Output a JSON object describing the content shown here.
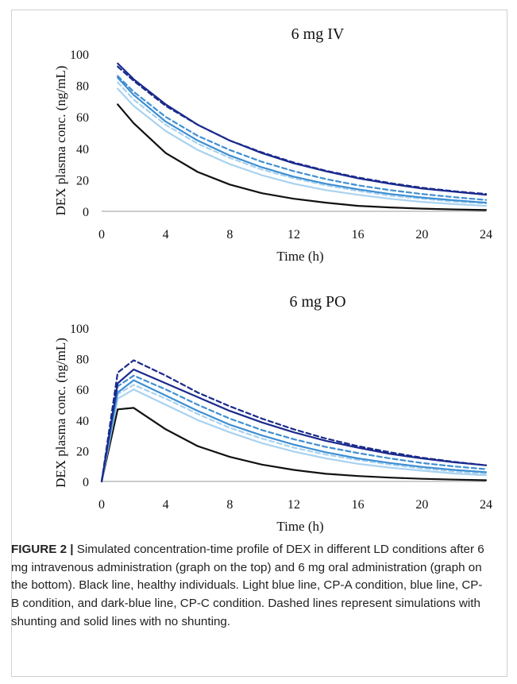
{
  "chart_data": [
    {
      "type": "line",
      "title": "6 mg IV",
      "xlabel": "Time (h)",
      "ylabel": "DEX plasma conc. (ng/mL)",
      "xlim": [
        0,
        24
      ],
      "ylim": [
        0,
        100
      ],
      "x_ticks": [
        "0",
        "4",
        "8",
        "12",
        "16",
        "20",
        "24"
      ],
      "y_ticks": [
        "0",
        "20",
        "40",
        "60",
        "80",
        "100"
      ],
      "grid": false,
      "legend": "none",
      "x": [
        1,
        2,
        4,
        6,
        8,
        10,
        12,
        14,
        16,
        18,
        20,
        22,
        24
      ],
      "series": [
        {
          "color": "#111111",
          "dash": false,
          "values": [
            68,
            56,
            37,
            25,
            17,
            11.5,
            8,
            5.5,
            3.5,
            2.5,
            1.7,
            1.2,
            0.8
          ]
        },
        {
          "color": "#a9d2f0",
          "dash": false,
          "values": [
            78,
            67,
            51,
            39,
            30,
            23,
            17.5,
            13.5,
            10.5,
            8,
            6,
            4.6,
            3.5
          ]
        },
        {
          "color": "#a9d2f0",
          "dash": true,
          "values": [
            82,
            71,
            55,
            43,
            34,
            26.5,
            21,
            16.5,
            13,
            10,
            8,
            6.2,
            5
          ]
        },
        {
          "color": "#3f8fd2",
          "dash": false,
          "values": [
            85,
            74,
            57,
            45,
            35.5,
            28,
            22,
            17.5,
            14,
            11,
            8.8,
            7,
            5.5
          ]
        },
        {
          "color": "#3f8fd2",
          "dash": true,
          "values": [
            86,
            76,
            60,
            48,
            39,
            31.5,
            25.5,
            20.5,
            16.5,
            13.5,
            11,
            9,
            7.2
          ]
        },
        {
          "color": "#1a2a8c",
          "dash": false,
          "values": [
            94,
            84,
            68,
            55,
            45,
            37,
            30.5,
            25.5,
            21,
            17.5,
            14.5,
            12.5,
            10.5
          ]
        },
        {
          "color": "#1a2a8c",
          "dash": true,
          "values": [
            92,
            83,
            67,
            55,
            45,
            37.5,
            31,
            25.8,
            21.5,
            18,
            15,
            12.8,
            11
          ]
        }
      ]
    },
    {
      "type": "line",
      "title": "6 mg PO",
      "xlabel": "Time (h)",
      "ylabel": "DEX plasma conc. (ng/mL)",
      "xlim": [
        0,
        24
      ],
      "ylim": [
        0,
        100
      ],
      "x_ticks": [
        "0",
        "4",
        "8",
        "12",
        "16",
        "20",
        "24"
      ],
      "y_ticks": [
        "0",
        "20",
        "40",
        "60",
        "80",
        "100"
      ],
      "grid": false,
      "legend": "none",
      "x": [
        0,
        1,
        2,
        4,
        6,
        8,
        10,
        12,
        14,
        16,
        18,
        20,
        22,
        24
      ],
      "series": [
        {
          "color": "#111111",
          "dash": false,
          "values": [
            0,
            47,
            48,
            34,
            23,
            16,
            11,
            7.5,
            5,
            3.5,
            2.5,
            1.7,
            1.2,
            0.8
          ]
        },
        {
          "color": "#a9d2f0",
          "dash": false,
          "values": [
            0,
            54,
            60,
            50,
            40,
            32,
            25,
            19.5,
            15,
            11.5,
            9,
            7,
            5.2,
            4
          ]
        },
        {
          "color": "#a9d2f0",
          "dash": true,
          "values": [
            0,
            57,
            63,
            54,
            44,
            35,
            28,
            22,
            17.5,
            14,
            11,
            8.5,
            6.5,
            5
          ]
        },
        {
          "color": "#3f8fd2",
          "dash": false,
          "values": [
            0,
            58,
            66,
            56,
            46,
            37,
            30,
            24,
            19,
            15,
            12,
            9.5,
            7.5,
            6
          ]
        },
        {
          "color": "#3f8fd2",
          "dash": true,
          "values": [
            0,
            62,
            69,
            60,
            50,
            41,
            33.5,
            27.5,
            22.5,
            18.5,
            15,
            12,
            9.8,
            8
          ]
        },
        {
          "color": "#1a2a8c",
          "dash": false,
          "values": [
            0,
            64,
            73,
            64,
            55,
            46,
            38.5,
            32,
            26.5,
            22,
            18,
            15,
            12.5,
            10.5
          ]
        },
        {
          "color": "#1a2a8c",
          "dash": true,
          "values": [
            0,
            71,
            79,
            69,
            58,
            49,
            41,
            34,
            28,
            23,
            19,
            15.5,
            12.8,
            10.5
          ]
        }
      ]
    }
  ],
  "caption": {
    "lead": "FIGURE 2 |",
    "text": " Simulated concentration-time profile of DEX in different LD conditions after 6 mg intravenous administration (graph on the top) and 6 mg oral administration (graph on the bottom). Black line, healthy individuals. Light blue line, CP-A condition, blue line, CP-B condition, and dark-blue line, CP-C condition. Dashed lines represent simulations with shunting and solid lines with no shunting."
  }
}
